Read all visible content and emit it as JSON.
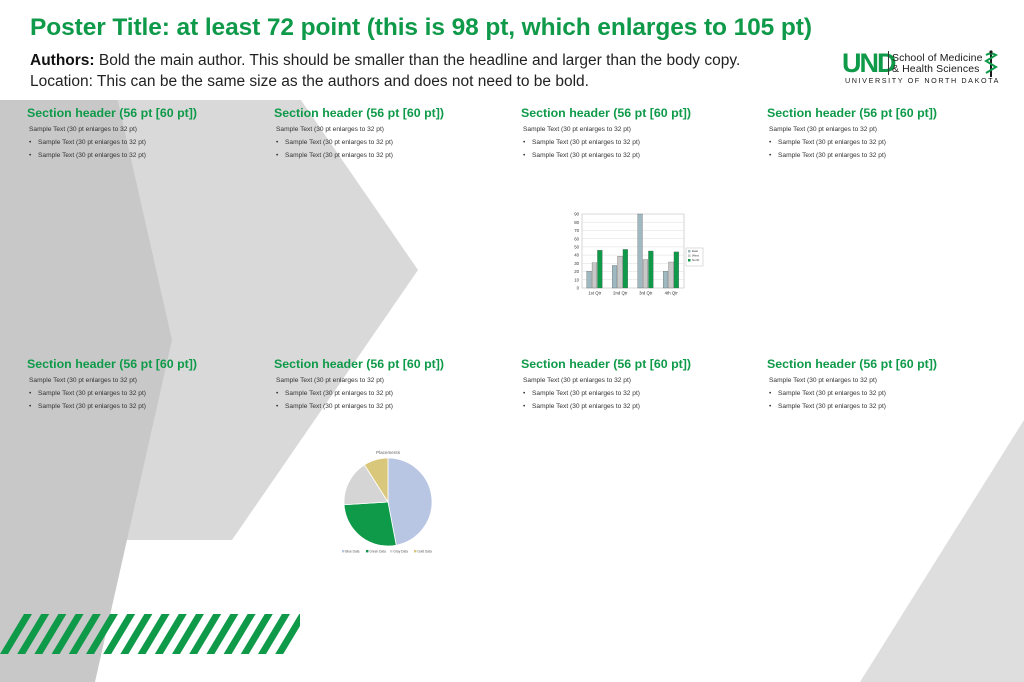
{
  "poster": {
    "title": "Poster Title: at least 72 point (this is 98 pt, which enlarges to 105 pt)",
    "authors_label": "Authors:",
    "authors_text": "Bold the main author. This should be smaller than the headline and larger than the body copy.",
    "location_text": "Location: This can be the same size as the authors and does not need to be bold."
  },
  "logo": {
    "mark": "UND",
    "school_line": "School of Medicine",
    "health_line": "& Health Sciences",
    "university_line": "UNIVERSITY OF NORTH DAKOTA"
  },
  "sections": [
    {
      "header": "Section header (56 pt [60 pt])",
      "sample": "Sample Text (30 pt enlarges to 32 pt)",
      "bullets": [
        "Sample Text (30 pt enlarges to 32 pt)",
        "Sample Text (30 pt enlarges to 32 pt)"
      ]
    },
    {
      "header": "Section header (56 pt [60 pt])",
      "sample": "Sample Text (30 pt enlarges to 32 pt)",
      "bullets": [
        "Sample Text (30 pt enlarges to 32 pt)",
        "Sample Text (30 pt enlarges to 32 pt)"
      ]
    },
    {
      "header": "Section header (56 pt [60 pt])",
      "sample": "Sample Text (30 pt enlarges to 32 pt)",
      "bullets": [
        "Sample Text (30 pt enlarges to 32 pt)",
        "Sample Text (30 pt enlarges to 32 pt)"
      ]
    },
    {
      "header": "Section header (56 pt [60 pt])",
      "sample": "Sample Text (30 pt enlarges to 32 pt)",
      "bullets": [
        "Sample Text (30 pt enlarges to 32 pt)",
        "Sample Text (30 pt enlarges to 32 pt)"
      ]
    },
    {
      "header": "Section header (56 pt [60 pt])",
      "sample": "Sample Text (30 pt enlarges to 32 pt)",
      "bullets": [
        "Sample Text (30 pt enlarges to 32 pt)",
        "Sample Text (30 pt enlarges to 32 pt)"
      ]
    },
    {
      "header": "Section header (56 pt [60 pt])",
      "sample": "Sample Text (30 pt enlarges to 32 pt)",
      "bullets": [
        "Sample Text (30 pt enlarges to 32 pt)",
        "Sample Text (30 pt enlarges to 32 pt)"
      ]
    },
    {
      "header": "Section header (56 pt [60 pt])",
      "sample": "Sample Text (30 pt enlarges to 32 pt)",
      "bullets": [
        "Sample Text (30 pt enlarges to 32 pt)",
        "Sample Text (30 pt enlarges to 32 pt)"
      ]
    },
    {
      "header": "Section header (56 pt [60 pt])",
      "sample": "Sample Text (30 pt enlarges to 32 pt)",
      "bullets": [
        "Sample Text (30 pt enlarges to 32 pt)",
        "Sample Text (30 pt enlarges to 32 pt)"
      ]
    }
  ],
  "colors": {
    "brand_green": "#0f9a4a",
    "dark_green": "#0a7a38",
    "teal": "#8fb3bd",
    "gray": "#bdbdbd",
    "background_gray": "#d9d9d9"
  },
  "chart_data": [
    {
      "type": "bar",
      "categories": [
        "1st Qtr",
        "2nd Qtr",
        "3rd Qtr",
        "4th Qtr"
      ],
      "series": [
        {
          "name": "East",
          "values": [
            20.4,
            27.4,
            90,
            20.4
          ],
          "color": "#9fb9c1"
        },
        {
          "name": "West",
          "values": [
            30.6,
            38.6,
            34.6,
            31.6
          ],
          "color": "#c8c8c8"
        },
        {
          "name": "North",
          "values": [
            45.9,
            46.9,
            45,
            43.9
          ],
          "color": "#0f9a4a"
        }
      ],
      "title": "",
      "xlabel": "",
      "ylabel": "",
      "ylim": [
        0,
        90
      ],
      "yticks": [
        0,
        10,
        20,
        30,
        40,
        50,
        60,
        70,
        80,
        90
      ],
      "legend_entries": [
        "East",
        "West",
        "North"
      ],
      "legend_placement": "right",
      "grid": true
    },
    {
      "type": "pie",
      "title": "Placements",
      "categories": [
        "Blue Data",
        "Green Data",
        "Gray Data",
        "Gold Data"
      ],
      "values": [
        47,
        27,
        17,
        9
      ],
      "colors": [
        "#b8c6e3",
        "#0f9a4a",
        "#d5d5d5",
        "#d9c87c"
      ],
      "legend_placement": "bottom"
    }
  ]
}
